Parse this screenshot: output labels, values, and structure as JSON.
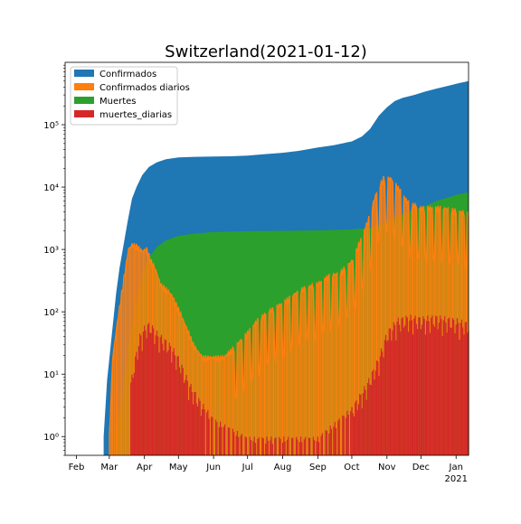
{
  "chart_data": {
    "type": "area",
    "title": "Switzerland(2021-01-12)",
    "xlabel": "",
    "ylabel": "",
    "yscale": "log",
    "ylim": [
      0.5,
      1000000
    ],
    "xlim": [
      "2020-01-22",
      "2021-01-12"
    ],
    "grid": false,
    "legend_position": "top-left",
    "x_ticks": [
      {
        "date": "2020-02-01",
        "label": "Feb"
      },
      {
        "date": "2020-03-01",
        "label": "Mar"
      },
      {
        "date": "2020-04-01",
        "label": "Apr"
      },
      {
        "date": "2020-05-01",
        "label": "May"
      },
      {
        "date": "2020-06-01",
        "label": "Jun"
      },
      {
        "date": "2020-07-01",
        "label": "Jul"
      },
      {
        "date": "2020-08-01",
        "label": "Aug"
      },
      {
        "date": "2020-09-01",
        "label": "Sep"
      },
      {
        "date": "2020-10-01",
        "label": "Oct"
      },
      {
        "date": "2020-11-01",
        "label": "Nov"
      },
      {
        "date": "2020-12-01",
        "label": "Dec"
      },
      {
        "date": "2021-01-01",
        "label": "Jan"
      }
    ],
    "x_year_label": "2021",
    "y_ticks": [
      {
        "value": 1,
        "label": "10⁰"
      },
      {
        "value": 10,
        "label": "10¹"
      },
      {
        "value": 100,
        "label": "10²"
      },
      {
        "value": 1000,
        "label": "10³"
      },
      {
        "value": 10000,
        "label": "10⁴"
      },
      {
        "value": 100000,
        "label": "10⁵"
      }
    ],
    "series": [
      {
        "name": "Confirmados",
        "color": "#1f77b4",
        "points": [
          [
            "2020-02-25",
            1
          ],
          [
            "2020-02-28",
            8
          ],
          [
            "2020-03-03",
            40
          ],
          [
            "2020-03-07",
            200
          ],
          [
            "2020-03-10",
            500
          ],
          [
            "2020-03-14",
            1300
          ],
          [
            "2020-03-17",
            2700
          ],
          [
            "2020-03-21",
            6500
          ],
          [
            "2020-03-25",
            10000
          ],
          [
            "2020-03-30",
            15500
          ],
          [
            "2020-04-05",
            21000
          ],
          [
            "2020-04-12",
            25000
          ],
          [
            "2020-04-20",
            28000
          ],
          [
            "2020-05-01",
            29800
          ],
          [
            "2020-05-15",
            30500
          ],
          [
            "2020-06-01",
            30900
          ],
          [
            "2020-06-15",
            31200
          ],
          [
            "2020-07-01",
            32000
          ],
          [
            "2020-07-15",
            33500
          ],
          [
            "2020-08-01",
            35500
          ],
          [
            "2020-08-15",
            38000
          ],
          [
            "2020-09-01",
            43000
          ],
          [
            "2020-09-15",
            47000
          ],
          [
            "2020-10-01",
            54000
          ],
          [
            "2020-10-10",
            65000
          ],
          [
            "2020-10-17",
            85000
          ],
          [
            "2020-10-25",
            140000
          ],
          [
            "2020-11-01",
            190000
          ],
          [
            "2020-11-08",
            240000
          ],
          [
            "2020-11-15",
            270000
          ],
          [
            "2020-11-25",
            300000
          ],
          [
            "2020-12-05",
            340000
          ],
          [
            "2020-12-15",
            380000
          ],
          [
            "2020-12-25",
            420000
          ],
          [
            "2021-01-05",
            470000
          ],
          [
            "2021-01-12",
            500000
          ]
        ]
      },
      {
        "name": "Confirmados diarios",
        "color": "#ff7f0e",
        "points": [
          [
            "2020-03-01",
            1
          ],
          [
            "2020-03-04",
            20
          ],
          [
            "2020-03-08",
            70
          ],
          [
            "2020-03-12",
            220
          ],
          [
            "2020-03-15",
            500
          ],
          [
            "2020-03-18",
            1100
          ],
          [
            "2020-03-22",
            1300
          ],
          [
            "2020-03-26",
            1200
          ],
          [
            "2020-03-30",
            1000
          ],
          [
            "2020-04-03",
            1100
          ],
          [
            "2020-04-07",
            700
          ],
          [
            "2020-04-11",
            500
          ],
          [
            "2020-04-15",
            300
          ],
          [
            "2020-04-20",
            250
          ],
          [
            "2020-04-25",
            200
          ],
          [
            "2020-05-01",
            120
          ],
          [
            "2020-05-08",
            60
          ],
          [
            "2020-05-15",
            30
          ],
          [
            "2020-05-22",
            20
          ],
          [
            "2020-06-01",
            20
          ],
          [
            "2020-06-10",
            20
          ],
          [
            "2020-06-20",
            30
          ],
          [
            "2020-07-01",
            50
          ],
          [
            "2020-07-10",
            80
          ],
          [
            "2020-07-20",
            110
          ],
          [
            "2020-08-01",
            150
          ],
          [
            "2020-08-10",
            200
          ],
          [
            "2020-08-20",
            260
          ],
          [
            "2020-09-01",
            300
          ],
          [
            "2020-09-10",
            400
          ],
          [
            "2020-09-20",
            450
          ],
          [
            "2020-10-01",
            700
          ],
          [
            "2020-10-08",
            1400
          ],
          [
            "2020-10-15",
            3000
          ],
          [
            "2020-10-22",
            8000
          ],
          [
            "2020-10-29",
            15000
          ],
          [
            "2020-11-04",
            15000
          ],
          [
            "2020-11-12",
            10000
          ],
          [
            "2020-11-20",
            6000
          ],
          [
            "2020-12-01",
            5000
          ],
          [
            "2020-12-10",
            5000
          ],
          [
            "2020-12-20",
            5000
          ],
          [
            "2021-01-01",
            4500
          ],
          [
            "2021-01-12",
            4000
          ]
        ]
      },
      {
        "name": "Muertes",
        "color": "#2ca02c",
        "points": [
          [
            "2020-03-05",
            1
          ],
          [
            "2020-03-12",
            4
          ],
          [
            "2020-03-18",
            30
          ],
          [
            "2020-03-24",
            120
          ],
          [
            "2020-03-30",
            400
          ],
          [
            "2020-04-05",
            750
          ],
          [
            "2020-04-12",
            1100
          ],
          [
            "2020-04-20",
            1400
          ],
          [
            "2020-05-01",
            1650
          ],
          [
            "2020-05-15",
            1800
          ],
          [
            "2020-06-01",
            1900
          ],
          [
            "2020-06-15",
            1930
          ],
          [
            "2020-07-01",
            1960
          ],
          [
            "2020-08-01",
            1990
          ],
          [
            "2020-09-01",
            2020
          ],
          [
            "2020-10-01",
            2100
          ],
          [
            "2020-10-15",
            2200
          ],
          [
            "2020-10-25",
            2400
          ],
          [
            "2020-11-01",
            2800
          ],
          [
            "2020-11-10",
            3400
          ],
          [
            "2020-11-20",
            4000
          ],
          [
            "2020-12-01",
            4700
          ],
          [
            "2020-12-15",
            6000
          ],
          [
            "2021-01-01",
            7500
          ],
          [
            "2021-01-12",
            8300
          ]
        ]
      },
      {
        "name": "muertes_diarias",
        "color": "#d62728",
        "points": [
          [
            "2020-03-20",
            8
          ],
          [
            "2020-03-24",
            20
          ],
          [
            "2020-03-28",
            45
          ],
          [
            "2020-04-02",
            65
          ],
          [
            "2020-04-06",
            70
          ],
          [
            "2020-04-12",
            50
          ],
          [
            "2020-04-18",
            40
          ],
          [
            "2020-04-25",
            30
          ],
          [
            "2020-05-01",
            20
          ],
          [
            "2020-05-10",
            8
          ],
          [
            "2020-05-20",
            4
          ],
          [
            "2020-06-01",
            2
          ],
          [
            "2020-07-01",
            1
          ],
          [
            "2020-08-01",
            1
          ],
          [
            "2020-09-01",
            1
          ],
          [
            "2020-10-01",
            3
          ],
          [
            "2020-10-15",
            8
          ],
          [
            "2020-10-25",
            20
          ],
          [
            "2020-11-01",
            50
          ],
          [
            "2020-11-10",
            80
          ],
          [
            "2020-11-20",
            90
          ],
          [
            "2020-12-01",
            85
          ],
          [
            "2020-12-15",
            90
          ],
          [
            "2021-01-01",
            80
          ],
          [
            "2021-01-12",
            70
          ]
        ]
      }
    ]
  }
}
